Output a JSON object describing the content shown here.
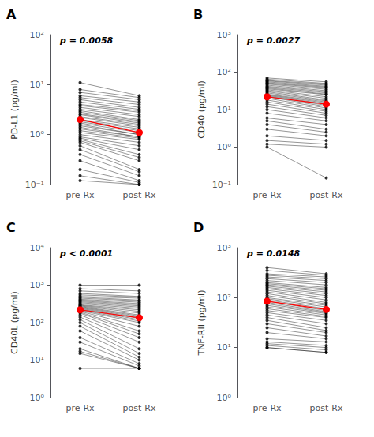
{
  "chart_data": [
    {
      "type": "paired",
      "title": "A",
      "annotations": [
        "p = 0.0058"
      ],
      "ylabel": "PD-L1 (pg/ml)",
      "categories": [
        "pre-Rx",
        "post-Rx"
      ],
      "log": "y",
      "grid": false,
      "ylim": [
        0.1,
        100
      ],
      "yticks": [
        {
          "value": 0.1,
          "label": "10⁻¹"
        },
        {
          "value": 1,
          "label": "10⁰"
        },
        {
          "value": 10,
          "label": "10¹"
        },
        {
          "value": 100,
          "label": "10²"
        }
      ],
      "series": [
        {
          "type": "paired",
          "color": "black",
          "values": [
            [
              11,
              8,
              7,
              6,
              5.5,
              5,
              4.5,
              4,
              3.8,
              3.5,
              3.2,
              3.0,
              2.8,
              2.6,
              2.5,
              2.3,
              2.2,
              2.0,
              1.9,
              1.8,
              1.7,
              1.6,
              1.5,
              1.4,
              1.3,
              1.2,
              1.1,
              1.0,
              0.9,
              0.85,
              0.8,
              0.75,
              0.7,
              0.6,
              0.5,
              0.4,
              0.3,
              0.2,
              0.15,
              0.12
            ],
            [
              6,
              5.5,
              5,
              4.5,
              4,
              3.5,
              3.2,
              3.0,
              2.8,
              2.5,
              2.3,
              2.0,
              1.9,
              1.8,
              1.7,
              1.6,
              1.5,
              1.4,
              1.3,
              1.2,
              1.1,
              1.0,
              1.0,
              0.9,
              0.9,
              0.85,
              0.8,
              0.7,
              0.6,
              0.5,
              0.4,
              0.35,
              0.3,
              0.2,
              0.18,
              0.15,
              0.12,
              0.11,
              0.1,
              0.1
            ]
          ]
        },
        {
          "type": "median",
          "color": "red",
          "values": [
            2.0,
            1.1
          ]
        }
      ]
    },
    {
      "type": "paired",
      "title": "B",
      "annotations": [
        "p = 0.0027"
      ],
      "ylabel": "CD40 (pg/ml)",
      "categories": [
        "pre-Rx",
        "post-Rx"
      ],
      "log": "y",
      "grid": false,
      "ylim": [
        0.1,
        1000
      ],
      "yticks": [
        {
          "value": 0.1,
          "label": "10⁻¹"
        },
        {
          "value": 1,
          "label": "10⁰"
        },
        {
          "value": 10,
          "label": "10¹"
        },
        {
          "value": 100,
          "label": "10²"
        },
        {
          "value": 1000,
          "label": "10³"
        }
      ],
      "series": [
        {
          "type": "paired",
          "color": "black",
          "values": [
            [
              70,
              65,
              60,
              58,
              55,
              52,
              50,
              48,
              45,
              42,
              40,
              38,
              36,
              34,
              32,
              30,
              28,
              26,
              25,
              24,
              23,
              22,
              20,
              18,
              16,
              14,
              12,
              10,
              8,
              6,
              5,
              4,
              3,
              2,
              1.5,
              1.2,
              1.0
            ],
            [
              55,
              50,
              48,
              45,
              42,
              40,
              38,
              35,
              32,
              30,
              28,
              26,
              25,
              22,
              20,
              18,
              17,
              16,
              15,
              14,
              13,
              12,
              11,
              10,
              9,
              8,
              7,
              6,
              5,
              4,
              3,
              2.5,
              2,
              1.5,
              1.2,
              1.0,
              0.15
            ]
          ]
        },
        {
          "type": "median",
          "color": "red",
          "values": [
            22,
            14
          ]
        }
      ]
    },
    {
      "type": "paired",
      "title": "C",
      "annotations": [
        "p < 0.0001"
      ],
      "ylabel": "CD40L (pg/ml)",
      "categories": [
        "pre-Rx",
        "post-Rx"
      ],
      "log": "y",
      "grid": false,
      "ylim": [
        1,
        10000
      ],
      "yticks": [
        {
          "value": 1,
          "label": "10⁰"
        },
        {
          "value": 10,
          "label": "10¹"
        },
        {
          "value": 100,
          "label": "10²"
        },
        {
          "value": 1000,
          "label": "10³"
        },
        {
          "value": 10000,
          "label": "10⁴"
        }
      ],
      "series": [
        {
          "type": "paired",
          "color": "black",
          "values": [
            [
              1000,
              800,
              700,
              600,
              550,
              500,
              480,
              450,
              420,
              400,
              380,
              360,
              340,
              320,
              300,
              290,
              280,
              270,
              260,
              250,
              240,
              230,
              220,
              210,
              200,
              190,
              180,
              160,
              140,
              120,
              100,
              80,
              60,
              40,
              30,
              20,
              17,
              15,
              6
            ],
            [
              1000,
              700,
              600,
              500,
              480,
              450,
              400,
              380,
              350,
              320,
              300,
              280,
              260,
              240,
              220,
              200,
              180,
              160,
              150,
              140,
              130,
              120,
              110,
              100,
              80,
              60,
              50,
              40,
              30,
              20,
              15,
              12,
              10,
              8,
              7,
              6,
              6,
              6,
              6
            ]
          ]
        },
        {
          "type": "median",
          "color": "red",
          "values": [
            220,
            135
          ]
        }
      ]
    },
    {
      "type": "paired",
      "title": "D",
      "annotations": [
        "p = 0.0148"
      ],
      "ylabel": "TNF-RII (pg/ml)",
      "categories": [
        "pre-Rx",
        "post-Rx"
      ],
      "log": "y",
      "grid": false,
      "ylim": [
        1,
        1000
      ],
      "yticks": [
        {
          "value": 1,
          "label": "10⁰"
        },
        {
          "value": 10,
          "label": "10¹"
        },
        {
          "value": 100,
          "label": "10²"
        },
        {
          "value": 1000,
          "label": "10³"
        }
      ],
      "series": [
        {
          "type": "paired",
          "color": "black",
          "values": [
            [
              400,
              350,
              300,
              280,
              260,
              240,
              220,
              200,
              190,
              180,
              170,
              160,
              150,
              140,
              130,
              120,
              110,
              100,
              95,
              90,
              85,
              80,
              75,
              70,
              65,
              60,
              55,
              50,
              45,
              40,
              35,
              30,
              25,
              20,
              15,
              13,
              12,
              11,
              10,
              10
            ],
            [
              300,
              280,
              260,
              240,
              220,
              200,
              180,
              160,
              150,
              140,
              130,
              120,
              110,
              100,
              90,
              80,
              75,
              70,
              65,
              60,
              55,
              52,
              50,
              48,
              45,
              42,
              40,
              35,
              30,
              25,
              22,
              20,
              17,
              15,
              13,
              11,
              10,
              9,
              8,
              8
            ]
          ]
        },
        {
          "type": "median",
          "color": "red",
          "values": [
            85,
            58
          ]
        }
      ]
    }
  ]
}
